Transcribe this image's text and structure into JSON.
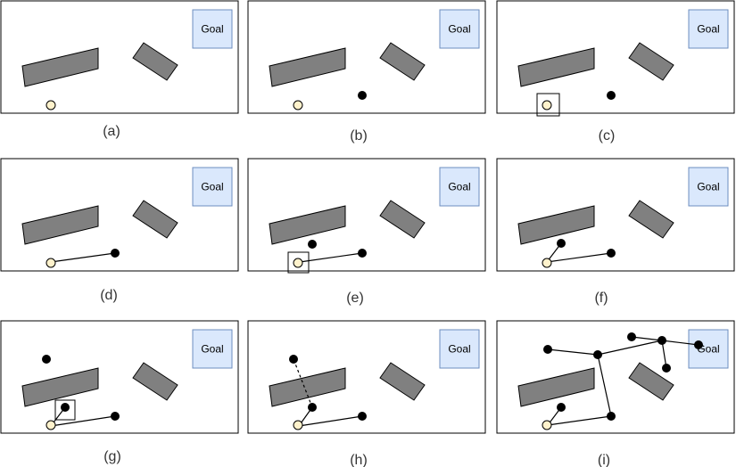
{
  "goal_label": "Goal",
  "colors": {
    "frame": "#000000",
    "obstacle_fill": "#808080",
    "goal_fill": "#dae8fc",
    "goal_stroke": "#6c8ebf",
    "start_fill": "#fff2cc",
    "node_fill": "#000000",
    "edge": "#000000"
  },
  "panels": [
    {
      "caption": "(a)"
    },
    {
      "caption": "(b)"
    },
    {
      "caption": "(c)"
    },
    {
      "caption": "(d)"
    },
    {
      "caption": "(e)"
    },
    {
      "caption": "(f)"
    },
    {
      "caption": "(g)"
    },
    {
      "caption": "(h)"
    },
    {
      "caption": "(i)"
    }
  ]
}
